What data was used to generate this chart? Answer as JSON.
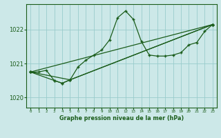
{
  "background_color": "#cce8e8",
  "grid_color": "#99cccc",
  "line_color": "#1a5c1a",
  "xlabel": "Graphe pression niveau de la mer (hPa)",
  "xlim": [
    -0.5,
    23.5
  ],
  "ylim": [
    1019.7,
    1022.75
  ],
  "yticks": [
    1020,
    1021,
    1022
  ],
  "xticks": [
    0,
    1,
    2,
    3,
    4,
    5,
    6,
    7,
    8,
    9,
    10,
    11,
    12,
    13,
    14,
    15,
    16,
    17,
    18,
    19,
    20,
    21,
    22,
    23
  ],
  "series1_x": [
    0,
    1,
    2,
    3,
    4,
    5,
    6,
    7,
    8,
    9,
    10,
    11,
    12,
    13,
    14,
    15,
    16,
    17,
    18,
    19,
    20,
    21,
    22,
    23
  ],
  "series1_y": [
    1020.75,
    1020.75,
    1020.8,
    1020.5,
    1020.42,
    1020.52,
    1020.9,
    1021.1,
    1021.25,
    1021.4,
    1021.7,
    1022.35,
    1022.55,
    1022.3,
    1021.65,
    1021.25,
    1021.22,
    1021.22,
    1021.25,
    1021.32,
    1021.55,
    1021.62,
    1021.95,
    1022.15
  ],
  "series2_x": [
    0,
    3,
    4,
    5,
    23
  ],
  "series2_y": [
    1020.75,
    1020.5,
    1020.42,
    1020.52,
    1022.15
  ],
  "series3_x": [
    0,
    5,
    23
  ],
  "series3_y": [
    1020.75,
    1020.52,
    1022.15
  ],
  "series4_x": [
    0,
    23
  ],
  "series4_y": [
    1020.75,
    1022.15
  ]
}
